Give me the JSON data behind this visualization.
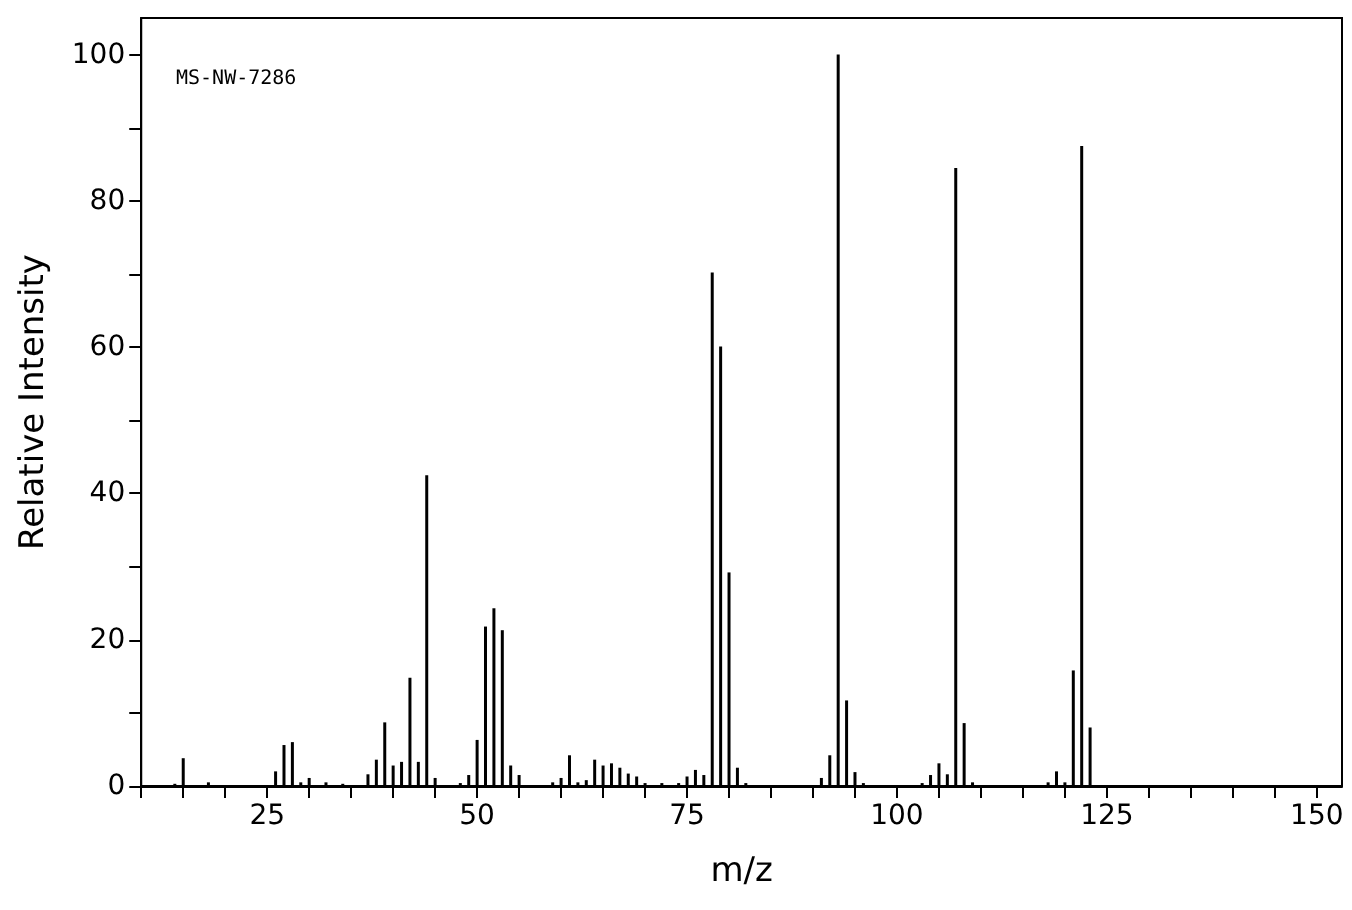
{
  "chart_data": {
    "type": "bar",
    "xlabel": "m/z",
    "ylabel": "Relative Intensity",
    "annotations": [
      "MS-NW-7286"
    ],
    "x": [
      14,
      15,
      18,
      26,
      27,
      28,
      29,
      30,
      32,
      34,
      37,
      38,
      39,
      40,
      41,
      42,
      43,
      44,
      45,
      46,
      48,
      49,
      50,
      51,
      52,
      53,
      54,
      55,
      56,
      59,
      60,
      61,
      62,
      63,
      64,
      65,
      66,
      67,
      68,
      69,
      70,
      72,
      74,
      75,
      76,
      77,
      78,
      79,
      80,
      81,
      82,
      91,
      92,
      93,
      94,
      95,
      96,
      103,
      104,
      105,
      106,
      107,
      108,
      109,
      118,
      119,
      120,
      121,
      122,
      123
    ],
    "values": [
      0.3,
      3.8,
      0.5,
      2.0,
      5.6,
      6.0,
      0.5,
      1.1,
      0.5,
      0.3,
      1.6,
      3.6,
      8.7,
      2.8,
      3.3,
      14.8,
      3.3,
      42.5,
      1.1,
      null,
      0.4,
      1.5,
      6.3,
      21.8,
      24.3,
      21.3,
      2.8,
      1.5,
      null,
      0.5,
      1.1,
      4.2,
      0.5,
      0.8,
      3.6,
      2.8,
      3.1,
      2.5,
      1.7,
      1.3,
      0.4,
      0.4,
      0.4,
      1.3,
      2.2,
      1.5,
      70.2,
      60.1,
      29.2,
      2.5,
      0.4,
      1.1,
      4.2,
      100,
      11.7,
      1.9,
      0.4,
      0.4,
      1.5,
      3.1,
      1.6,
      84.5,
      8.6,
      0.5,
      0.5,
      2.0,
      0.5,
      15.8,
      87.5,
      8.0
    ],
    "color": "#000000",
    "xlim": [
      10,
      153
    ],
    "xticks": [
      {
        "value": 10,
        "label": null
      },
      {
        "value": 15,
        "label": null
      },
      {
        "value": 20,
        "label": null
      },
      25,
      {
        "value": 30,
        "label": null
      },
      {
        "value": 35,
        "label": null
      },
      {
        "value": 40,
        "label": null
      },
      {
        "value": 45,
        "label": null
      },
      50,
      {
        "value": 55,
        "label": null
      },
      {
        "value": 60,
        "label": null
      },
      {
        "value": 65,
        "label": null
      },
      {
        "value": 70,
        "label": null
      },
      75,
      {
        "value": 80,
        "label": null
      },
      {
        "value": 85,
        "label": null
      },
      {
        "value": 90,
        "label": null
      },
      {
        "value": 95,
        "label": null
      },
      100,
      {
        "value": 105,
        "label": null
      },
      {
        "value": 110,
        "label": null
      },
      {
        "value": 115,
        "label": null
      },
      {
        "value": 120,
        "label": null
      },
      125,
      {
        "value": 130,
        "label": null
      },
      {
        "value": 135,
        "label": null
      },
      {
        "value": 140,
        "label": null
      },
      {
        "value": 145,
        "label": null
      },
      150
    ],
    "ylim": [
      0,
      105
    ],
    "yticks": [
      0,
      {
        "value": 10,
        "label": null
      },
      20,
      {
        "value": 30,
        "label": null
      },
      40,
      {
        "value": 50,
        "label": null
      },
      60,
      {
        "value": 70,
        "label": null
      },
      80,
      {
        "value": 90,
        "label": null
      },
      100
    ],
    "grid": false
  }
}
